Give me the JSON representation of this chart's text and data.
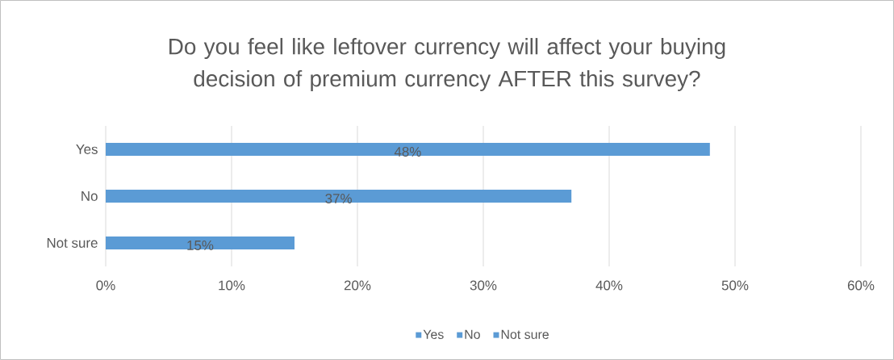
{
  "chart_data": {
    "type": "bar",
    "orientation": "horizontal",
    "title": "Do you feel like leftover currency will affect your buying decision of premium currency AFTER this survey?",
    "categories": [
      "Yes",
      "No",
      "Not sure"
    ],
    "series": [
      {
        "name": "Yes",
        "color": "#5b9bd5",
        "values": [
          48,
          null,
          null
        ],
        "value_labels": [
          "48%",
          null,
          null
        ]
      },
      {
        "name": "No",
        "color": "#5b9bd5",
        "values": [
          null,
          37,
          null
        ],
        "value_labels": [
          null,
          "37%",
          null
        ]
      },
      {
        "name": "Not sure",
        "color": "#5b9bd5",
        "values": [
          null,
          null,
          15
        ],
        "value_labels": [
          null,
          null,
          "15%"
        ]
      }
    ],
    "xlim": [
      0,
      60
    ],
    "xticks": [
      {
        "value": 0,
        "label": "0%"
      },
      {
        "value": 10,
        "label": "10%"
      },
      {
        "value": 20,
        "label": "20%"
      },
      {
        "value": 30,
        "label": "30%"
      },
      {
        "value": 40,
        "label": "40%"
      },
      {
        "value": 50,
        "label": "50%"
      },
      {
        "value": 60,
        "label": "60%"
      }
    ],
    "grid": "x",
    "legend": "bottom"
  }
}
